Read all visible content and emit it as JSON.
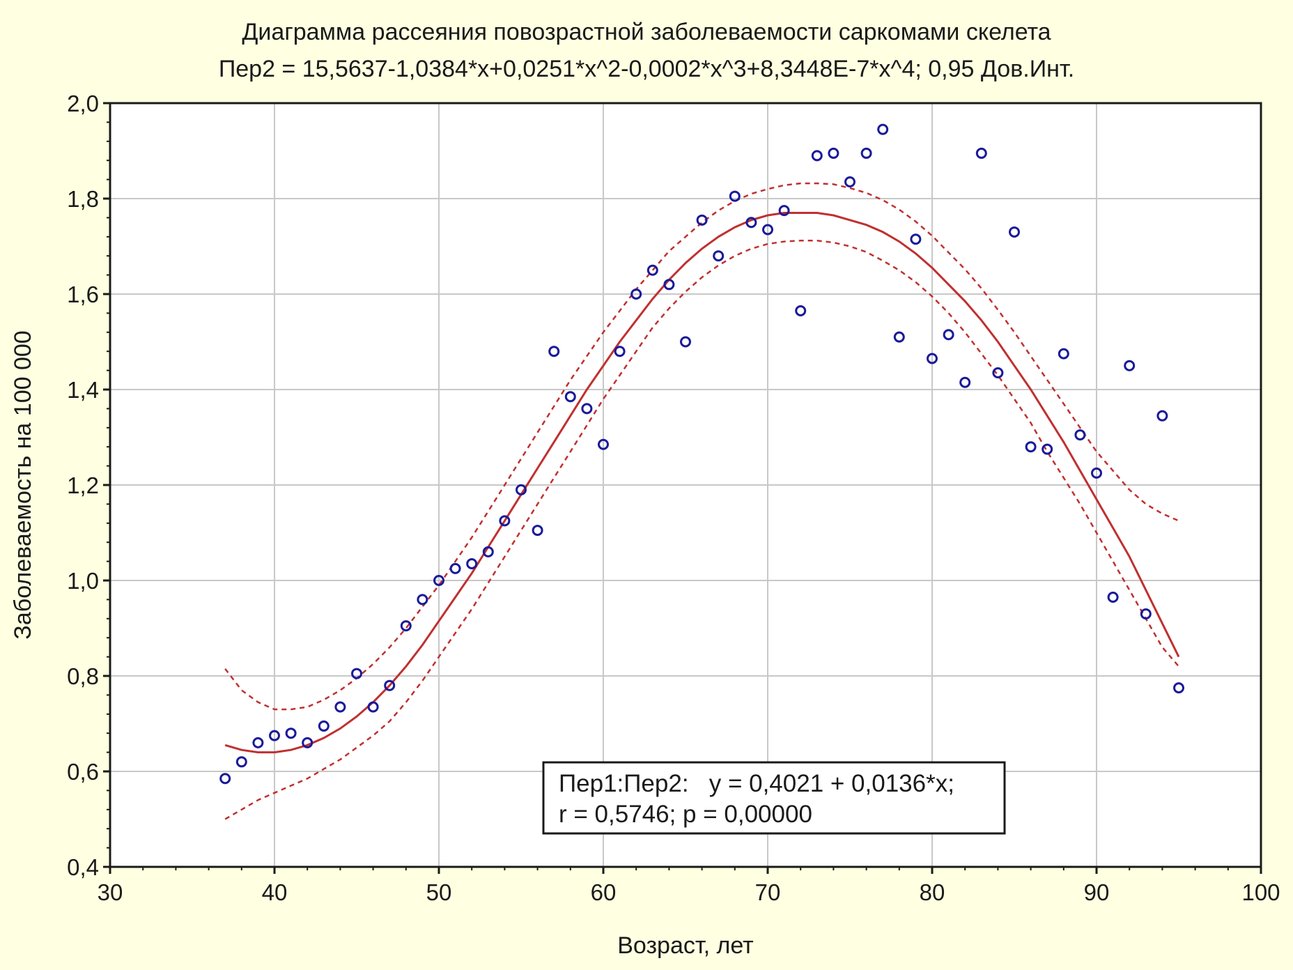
{
  "chart_data": {
    "type": "scatter",
    "title": "Диаграмма рассеяния повозрастной заболеваемости саркомами скелета",
    "subtitle": "Пер2 = 15,5637-1,0384*x+0,0251*x^2-0,0002*x^3+8,3448E-7*x^4; 0,95 Дов.Инт.",
    "xlabel": "Возраст, лет",
    "ylabel": "Заболеваемость на 100 000",
    "xlim": [
      30,
      100
    ],
    "ylim": [
      0.4,
      2.0
    ],
    "x_ticks": [
      "30",
      "40",
      "50",
      "60",
      "70",
      "80",
      "90",
      "100"
    ],
    "y_ticks": [
      "0,4",
      "0,6",
      "0,8",
      "1,0",
      "1,2",
      "1,4",
      "1,6",
      "1,8",
      "2,0"
    ],
    "grid": true,
    "legend": {
      "placement": "bottom-center",
      "lines": [
        "Пер1:Пер2:   y = 0,4021 + 0,0136*x;",
        "r = 0,5746; p = 0,00000"
      ]
    },
    "points": {
      "x": [
        37,
        38,
        39,
        40,
        41,
        42,
        43,
        44,
        45,
        46,
        47,
        48,
        49,
        50,
        51,
        52,
        53,
        54,
        55,
        56,
        57,
        58,
        59,
        60,
        61,
        62,
        63,
        64,
        65,
        66,
        67,
        68,
        69,
        70,
        71,
        72,
        73,
        74,
        75,
        76,
        77,
        78,
        79,
        80,
        81,
        82,
        83,
        84,
        85,
        86,
        87,
        88,
        89,
        90,
        91,
        92,
        93,
        94,
        95
      ],
      "y": [
        0.585,
        0.62,
        0.66,
        0.675,
        0.68,
        0.66,
        0.695,
        0.735,
        0.805,
        0.735,
        0.78,
        0.905,
        0.96,
        1.0,
        1.025,
        1.035,
        1.06,
        1.125,
        1.19,
        1.105,
        1.48,
        1.385,
        1.36,
        1.285,
        1.48,
        1.6,
        1.65,
        1.62,
        1.5,
        1.755,
        1.68,
        1.805,
        1.75,
        1.735,
        1.775,
        1.565,
        1.89,
        1.895,
        1.835,
        1.895,
        1.945,
        1.51,
        1.715,
        1.465,
        1.515,
        1.415,
        1.895,
        1.435,
        1.73,
        1.28,
        1.275,
        1.475,
        1.305,
        1.225,
        0.965,
        1.45,
        0.93,
        1.345,
        0.775
      ]
    },
    "series": [
      {
        "style": "solid",
        "x": [
          37,
          38,
          39,
          40,
          41,
          42,
          43,
          44,
          45,
          46,
          47,
          48,
          49,
          50,
          51,
          52,
          53,
          54,
          55,
          56,
          57,
          58,
          59,
          60,
          61,
          62,
          63,
          64,
          65,
          66,
          67,
          68,
          69,
          70,
          71,
          72,
          73,
          74,
          75,
          76,
          77,
          78,
          79,
          80,
          81,
          82,
          83,
          84,
          85,
          86,
          87,
          88,
          89,
          90,
          91,
          92,
          93,
          94,
          95
        ],
        "y": [
          0.655,
          0.645,
          0.64,
          0.64,
          0.645,
          0.655,
          0.67,
          0.69,
          0.715,
          0.745,
          0.78,
          0.82,
          0.865,
          0.915,
          0.965,
          1.015,
          1.07,
          1.125,
          1.18,
          1.235,
          1.29,
          1.345,
          1.4,
          1.45,
          1.5,
          1.545,
          1.59,
          1.63,
          1.665,
          1.695,
          1.72,
          1.74,
          1.755,
          1.765,
          1.77,
          1.77,
          1.77,
          1.765,
          1.755,
          1.745,
          1.73,
          1.71,
          1.685,
          1.655,
          1.62,
          1.585,
          1.545,
          1.5,
          1.45,
          1.4,
          1.345,
          1.29,
          1.23,
          1.17,
          1.11,
          1.05,
          0.98,
          0.91,
          0.84
        ]
      },
      {
        "style": "dashed",
        "x": [
          37,
          38,
          39,
          40,
          41,
          42,
          43,
          44,
          45,
          46,
          47,
          48,
          49,
          50,
          51,
          52,
          53,
          54,
          55,
          56,
          57,
          58,
          59,
          60,
          61,
          62,
          63,
          64,
          65,
          66,
          67,
          68,
          69,
          70,
          71,
          72,
          73,
          74,
          75,
          76,
          77,
          78,
          79,
          80,
          81,
          82,
          83,
          84,
          85,
          86,
          87,
          88,
          89,
          90,
          91,
          92,
          93,
          94,
          95
        ],
        "y": [
          0.815,
          0.77,
          0.745,
          0.73,
          0.73,
          0.735,
          0.75,
          0.77,
          0.795,
          0.825,
          0.86,
          0.9,
          0.945,
          0.99,
          1.04,
          1.09,
          1.145,
          1.2,
          1.255,
          1.31,
          1.365,
          1.42,
          1.47,
          1.52,
          1.565,
          1.61,
          1.65,
          1.69,
          1.72,
          1.75,
          1.775,
          1.795,
          1.81,
          1.82,
          1.828,
          1.832,
          1.832,
          1.83,
          1.822,
          1.812,
          1.797,
          1.777,
          1.752,
          1.722,
          1.687,
          1.652,
          1.612,
          1.567,
          1.52,
          1.47,
          1.42,
          1.37,
          1.32,
          1.27,
          1.23,
          1.19,
          1.16,
          1.14,
          1.125
        ]
      },
      {
        "style": "dashed",
        "x": [
          37,
          38,
          39,
          40,
          41,
          42,
          43,
          44,
          45,
          46,
          47,
          48,
          49,
          50,
          51,
          52,
          53,
          54,
          55,
          56,
          57,
          58,
          59,
          60,
          61,
          62,
          63,
          64,
          65,
          66,
          67,
          68,
          69,
          70,
          71,
          72,
          73,
          74,
          75,
          76,
          77,
          78,
          79,
          80,
          81,
          82,
          83,
          84,
          85,
          86,
          87,
          88,
          89,
          90,
          91,
          92,
          93,
          94,
          95
        ],
        "y": [
          0.5,
          0.52,
          0.54,
          0.555,
          0.57,
          0.585,
          0.605,
          0.625,
          0.65,
          0.675,
          0.705,
          0.745,
          0.79,
          0.84,
          0.89,
          0.94,
          0.995,
          1.05,
          1.105,
          1.16,
          1.215,
          1.27,
          1.325,
          1.38,
          1.43,
          1.48,
          1.53,
          1.57,
          1.605,
          1.635,
          1.66,
          1.68,
          1.695,
          1.705,
          1.71,
          1.712,
          1.712,
          1.708,
          1.7,
          1.688,
          1.67,
          1.65,
          1.625,
          1.595,
          1.56,
          1.52,
          1.475,
          1.43,
          1.38,
          1.33,
          1.27,
          1.215,
          1.16,
          1.1,
          1.04,
          0.98,
          0.92,
          0.86,
          0.82
        ]
      }
    ],
    "colors": {
      "background": "#ffffe1",
      "plot_background": "#ffffff",
      "points": "#1a1a99",
      "fit_line": "#c03030"
    }
  }
}
